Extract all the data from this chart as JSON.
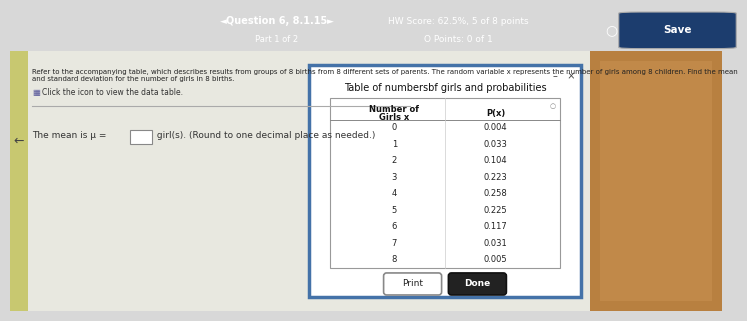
{
  "header_bg_color": "#2e6da4",
  "header_text": "Question 6, 8.1.15",
  "header_sub": "Part 1 of 2",
  "hw_score_text": "HW Score: 62.5%, 5 of 8 points",
  "points_text": "O Points: 0 of 1",
  "save_text": "Save",
  "instruction_text": "Refer to the accompanying table, which describes results from groups of 8 births from 8 different sets of parents. The random variable x represents the number of girls among 8 children. Find the mean\nand standard deviation for the number of girls in 8 births.",
  "click_text": "Click the icon to view the data table.",
  "mean_label": "The mean is μ =",
  "mean_suffix": " girl(s). (Round to one decimal place as needed.)",
  "table_title": "Table of numbers​bf girls and probabilities",
  "col1_header_line1": "Number of",
  "col1_header_line2": "Girls x",
  "col2_header": "P(x)",
  "girls": [
    0,
    1,
    2,
    3,
    4,
    5,
    6,
    7,
    8
  ],
  "probs": [
    "0.004",
    "0.033",
    "0.104",
    "0.223",
    "0.258",
    "0.225",
    "0.117",
    "0.031",
    "0.005"
  ],
  "print_btn": "Print",
  "done_btn": "Done",
  "popup_border": "#4472a8",
  "popup_bg": "#ffffff",
  "body_bg": "#d8d8d8",
  "left_bg": "#c8c8b0",
  "right_photo_color": "#c8a060"
}
